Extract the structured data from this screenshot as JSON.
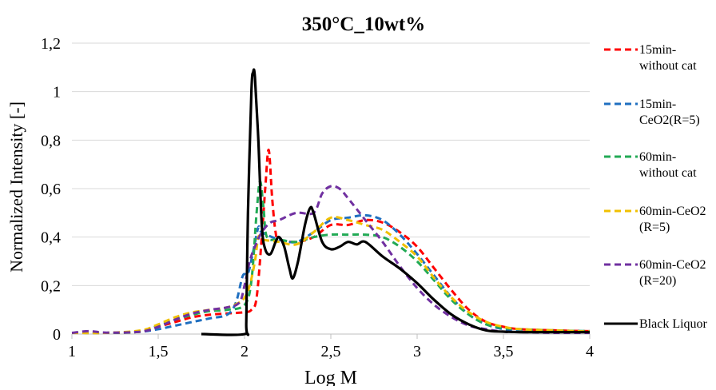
{
  "chart_data": {
    "type": "line",
    "title": "350°C_10wt%",
    "xlabel": "Log M",
    "ylabel": "Normalized  Intensity  [-]",
    "xlim": [
      1,
      4
    ],
    "ylim": [
      0,
      1.2
    ],
    "xticks": [
      {
        "v": 1,
        "label": "1"
      },
      {
        "v": 1.5,
        "label": "1,5"
      },
      {
        "v": 2,
        "label": "2"
      },
      {
        "v": 2.5,
        "label": "2,5"
      },
      {
        "v": 3,
        "label": "3"
      },
      {
        "v": 3.5,
        "label": "3,5"
      },
      {
        "v": 4,
        "label": "4"
      }
    ],
    "yticks": [
      {
        "v": 0,
        "label": "0"
      },
      {
        "v": 0.2,
        "label": "0,2"
      },
      {
        "v": 0.4,
        "label": "0,4"
      },
      {
        "v": 0.6,
        "label": "0,6"
      },
      {
        "v": 0.8,
        "label": "0,8"
      },
      {
        "v": 1.0,
        "label": "1"
      },
      {
        "v": 1.2,
        "label": "1,2"
      }
    ],
    "grid": "horizontal",
    "legend_position": "right",
    "series": [
      {
        "name": "15min-without cat",
        "legend_lines": [
          "15min-",
          "without cat"
        ],
        "color": "#ff0000",
        "dashed": true,
        "points": [
          [
            1,
            0.005
          ],
          [
            1.2,
            0.005
          ],
          [
            1.4,
            0.01
          ],
          [
            1.5,
            0.03
          ],
          [
            1.6,
            0.05
          ],
          [
            1.7,
            0.07
          ],
          [
            1.8,
            0.08
          ],
          [
            1.9,
            0.085
          ],
          [
            2.0,
            0.09
          ],
          [
            2.04,
            0.1
          ],
          [
            2.07,
            0.15
          ],
          [
            2.1,
            0.4
          ],
          [
            2.12,
            0.6
          ],
          [
            2.14,
            0.76
          ],
          [
            2.16,
            0.56
          ],
          [
            2.18,
            0.42
          ],
          [
            2.2,
            0.39
          ],
          [
            2.3,
            0.38
          ],
          [
            2.4,
            0.4
          ],
          [
            2.5,
            0.45
          ],
          [
            2.6,
            0.45
          ],
          [
            2.7,
            0.47
          ],
          [
            2.8,
            0.46
          ],
          [
            2.9,
            0.42
          ],
          [
            3.0,
            0.36
          ],
          [
            3.1,
            0.27
          ],
          [
            3.2,
            0.18
          ],
          [
            3.3,
            0.1
          ],
          [
            3.4,
            0.05
          ],
          [
            3.5,
            0.03
          ],
          [
            3.6,
            0.02
          ],
          [
            3.8,
            0.015
          ],
          [
            4.0,
            0.012
          ]
        ]
      },
      {
        "name": "15min-CeO2(R=5)",
        "legend_lines": [
          "15min-",
          "CeO2(R=5)"
        ],
        "color": "#1f6fc0",
        "dashed": true,
        "points": [
          [
            1,
            0.005
          ],
          [
            1.2,
            0.005
          ],
          [
            1.4,
            0.01
          ],
          [
            1.5,
            0.02
          ],
          [
            1.6,
            0.035
          ],
          [
            1.7,
            0.05
          ],
          [
            1.8,
            0.065
          ],
          [
            1.9,
            0.08
          ],
          [
            1.95,
            0.13
          ],
          [
            1.99,
            0.24
          ],
          [
            2.02,
            0.25
          ],
          [
            2.05,
            0.34
          ],
          [
            2.08,
            0.44
          ],
          [
            2.1,
            0.42
          ],
          [
            2.2,
            0.39
          ],
          [
            2.3,
            0.38
          ],
          [
            2.4,
            0.42
          ],
          [
            2.5,
            0.47
          ],
          [
            2.6,
            0.48
          ],
          [
            2.7,
            0.49
          ],
          [
            2.8,
            0.47
          ],
          [
            2.9,
            0.41
          ],
          [
            3.0,
            0.33
          ],
          [
            3.1,
            0.24
          ],
          [
            3.2,
            0.15
          ],
          [
            3.3,
            0.08
          ],
          [
            3.4,
            0.04
          ],
          [
            3.5,
            0.02
          ],
          [
            3.6,
            0.015
          ],
          [
            3.8,
            0.01
          ],
          [
            4.0,
            0.01
          ]
        ]
      },
      {
        "name": "60min-without cat",
        "legend_lines": [
          "60min-",
          "without cat"
        ],
        "color": "#22aa55",
        "dashed": true,
        "points": [
          [
            1,
            0.005
          ],
          [
            1.2,
            0.005
          ],
          [
            1.4,
            0.01
          ],
          [
            1.5,
            0.035
          ],
          [
            1.6,
            0.06
          ],
          [
            1.7,
            0.08
          ],
          [
            1.8,
            0.095
          ],
          [
            1.9,
            0.1
          ],
          [
            2.0,
            0.12
          ],
          [
            2.04,
            0.22
          ],
          [
            2.07,
            0.5
          ],
          [
            2.09,
            0.63
          ],
          [
            2.11,
            0.52
          ],
          [
            2.13,
            0.4
          ],
          [
            2.2,
            0.39
          ],
          [
            2.3,
            0.38
          ],
          [
            2.4,
            0.4
          ],
          [
            2.5,
            0.41
          ],
          [
            2.6,
            0.41
          ],
          [
            2.7,
            0.41
          ],
          [
            2.8,
            0.4
          ],
          [
            2.9,
            0.36
          ],
          [
            3.0,
            0.3
          ],
          [
            3.1,
            0.22
          ],
          [
            3.2,
            0.14
          ],
          [
            3.3,
            0.08
          ],
          [
            3.4,
            0.04
          ],
          [
            3.5,
            0.025
          ],
          [
            3.6,
            0.02
          ],
          [
            3.8,
            0.015
          ],
          [
            4.0,
            0.012
          ]
        ]
      },
      {
        "name": "60min-CeO2(R=5)",
        "legend_lines": [
          "60min-CeO2",
          "(R=5)"
        ],
        "color": "#f0c000",
        "dashed": true,
        "points": [
          [
            1,
            0.005
          ],
          [
            1.2,
            0.005
          ],
          [
            1.4,
            0.015
          ],
          [
            1.5,
            0.04
          ],
          [
            1.6,
            0.07
          ],
          [
            1.7,
            0.09
          ],
          [
            1.8,
            0.1
          ],
          [
            1.9,
            0.11
          ],
          [
            1.97,
            0.13
          ],
          [
            2.0,
            0.15
          ],
          [
            2.03,
            0.2
          ],
          [
            2.06,
            0.3
          ],
          [
            2.08,
            0.4
          ],
          [
            2.1,
            0.39
          ],
          [
            2.2,
            0.38
          ],
          [
            2.3,
            0.37
          ],
          [
            2.4,
            0.42
          ],
          [
            2.5,
            0.48
          ],
          [
            2.6,
            0.47
          ],
          [
            2.7,
            0.45
          ],
          [
            2.8,
            0.43
          ],
          [
            2.9,
            0.38
          ],
          [
            3.0,
            0.32
          ],
          [
            3.1,
            0.23
          ],
          [
            3.2,
            0.15
          ],
          [
            3.3,
            0.09
          ],
          [
            3.4,
            0.05
          ],
          [
            3.5,
            0.03
          ],
          [
            3.6,
            0.02
          ],
          [
            3.8,
            0.015
          ],
          [
            4.0,
            0.01
          ]
        ]
      },
      {
        "name": "60min-CeO2(R=20)",
        "legend_lines": [
          "60min-CeO2",
          "(R=20)"
        ],
        "color": "#7030a0",
        "dashed": true,
        "points": [
          [
            1,
            0.005
          ],
          [
            1.1,
            0.012
          ],
          [
            1.2,
            0.006
          ],
          [
            1.4,
            0.01
          ],
          [
            1.5,
            0.03
          ],
          [
            1.6,
            0.06
          ],
          [
            1.7,
            0.085
          ],
          [
            1.8,
            0.1
          ],
          [
            1.9,
            0.11
          ],
          [
            1.97,
            0.13
          ],
          [
            2.0,
            0.2
          ],
          [
            2.03,
            0.3
          ],
          [
            2.06,
            0.36
          ],
          [
            2.1,
            0.42
          ],
          [
            2.15,
            0.46
          ],
          [
            2.2,
            0.47
          ],
          [
            2.3,
            0.5
          ],
          [
            2.4,
            0.5
          ],
          [
            2.45,
            0.58
          ],
          [
            2.5,
            0.61
          ],
          [
            2.55,
            0.6
          ],
          [
            2.6,
            0.56
          ],
          [
            2.7,
            0.47
          ],
          [
            2.8,
            0.38
          ],
          [
            2.9,
            0.28
          ],
          [
            3.0,
            0.19
          ],
          [
            3.1,
            0.12
          ],
          [
            3.2,
            0.07
          ],
          [
            3.3,
            0.035
          ],
          [
            3.4,
            0.02
          ],
          [
            3.5,
            0.01
          ],
          [
            3.6,
            0.008
          ],
          [
            3.8,
            0.005
          ],
          [
            4.0,
            0.005
          ]
        ]
      },
      {
        "name": "Black Liquor",
        "legend_lines": [
          "Black Liquor"
        ],
        "color": "#000000",
        "dashed": false,
        "points": [
          [
            1.75,
            0
          ],
          [
            2.0,
            0
          ],
          [
            2.01,
            0.05
          ],
          [
            2.02,
            0.5
          ],
          [
            2.04,
            1.0
          ],
          [
            2.05,
            1.08
          ],
          [
            2.06,
            1.06
          ],
          [
            2.08,
            0.8
          ],
          [
            2.1,
            0.45
          ],
          [
            2.12,
            0.35
          ],
          [
            2.15,
            0.33
          ],
          [
            2.18,
            0.38
          ],
          [
            2.2,
            0.4
          ],
          [
            2.23,
            0.36
          ],
          [
            2.26,
            0.27
          ],
          [
            2.28,
            0.23
          ],
          [
            2.31,
            0.3
          ],
          [
            2.35,
            0.45
          ],
          [
            2.38,
            0.52
          ],
          [
            2.4,
            0.5
          ],
          [
            2.45,
            0.38
          ],
          [
            2.5,
            0.35
          ],
          [
            2.55,
            0.36
          ],
          [
            2.6,
            0.38
          ],
          [
            2.65,
            0.37
          ],
          [
            2.7,
            0.38
          ],
          [
            2.8,
            0.32
          ],
          [
            2.9,
            0.27
          ],
          [
            3.0,
            0.21
          ],
          [
            3.1,
            0.14
          ],
          [
            3.2,
            0.08
          ],
          [
            3.3,
            0.04
          ],
          [
            3.4,
            0.015
          ],
          [
            3.5,
            0.01
          ],
          [
            3.6,
            0.008
          ],
          [
            3.8,
            0.008
          ],
          [
            4.0,
            0.008
          ]
        ]
      }
    ]
  }
}
